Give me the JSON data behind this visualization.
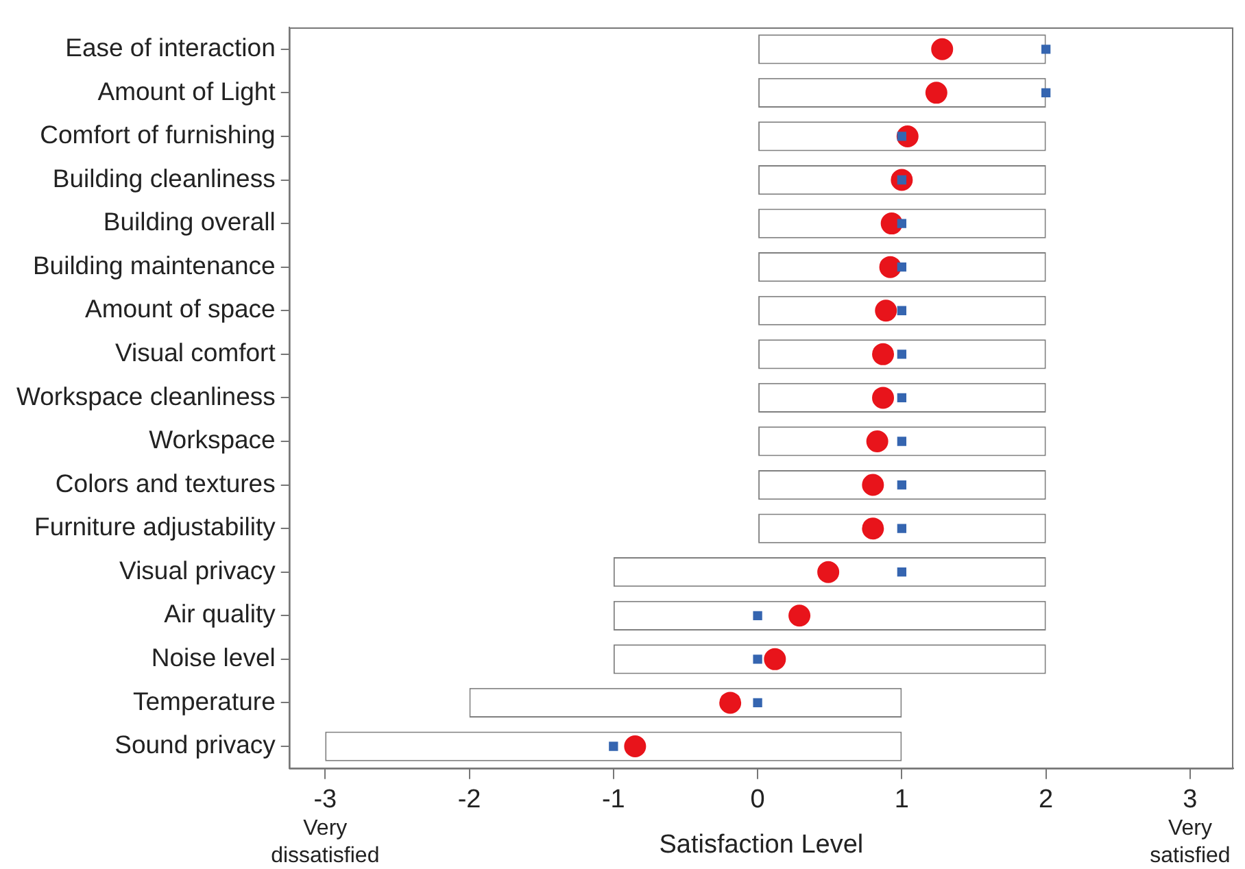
{
  "chart_data": {
    "type": "bar",
    "orientation": "horizontal",
    "xlabel": "Satisfaction Level",
    "categories": [
      "Ease of interaction",
      "Amount of Light",
      "Comfort of furnishing",
      "Building cleanliness",
      "Building overall",
      "Building maintenance",
      "Amount of space",
      "Visual comfort",
      "Workspace cleanliness",
      "Workspace",
      "Colors and textures",
      "Furniture adjustability",
      "Visual privacy",
      "Air quality",
      "Noise level",
      "Temperature",
      "Sound privacy"
    ],
    "series": [
      {
        "color": "#ffffff",
        "base": [
          0,
          0,
          0,
          0,
          0,
          0,
          0,
          0,
          0,
          0,
          0,
          0,
          -1,
          -1,
          -1,
          -2,
          -3
        ],
        "values": [
          2,
          2,
          2,
          2,
          2,
          2,
          2,
          2,
          2,
          2,
          2,
          2,
          3,
          3,
          3,
          3,
          4
        ]
      },
      {
        "type": "scatter",
        "color": "#3565b0",
        "marker": "square",
        "values": [
          2,
          2,
          1,
          1,
          1,
          1,
          1,
          1,
          1,
          1,
          1,
          1,
          1,
          0,
          0,
          0,
          -1
        ]
      },
      {
        "type": "scatter",
        "color": "#e8141b",
        "marker": "circle",
        "values": [
          1.28,
          1.24,
          1.04,
          1.0,
          0.93,
          0.92,
          0.89,
          0.87,
          0.87,
          0.83,
          0.8,
          0.8,
          0.49,
          0.29,
          0.12,
          -0.19,
          -0.85
        ]
      }
    ],
    "xlim": [
      -3.25,
      3.3
    ],
    "xticks": [
      -3,
      -2,
      -1,
      0,
      1,
      2,
      3
    ],
    "annotations": [
      "Very dissatisfied",
      "Very satisfied"
    ],
    "grid": false,
    "legend": false
  }
}
